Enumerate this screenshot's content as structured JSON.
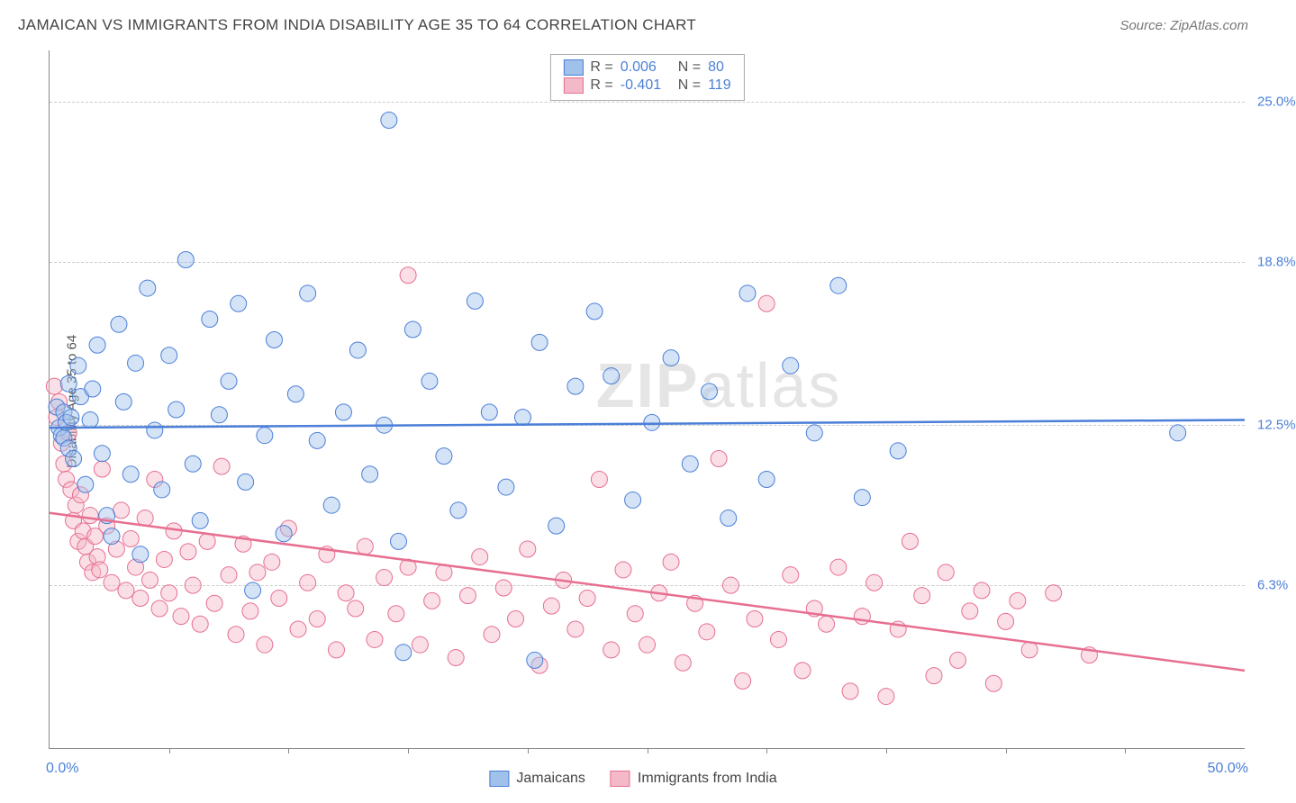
{
  "header": {
    "title": "JAMAICAN VS IMMIGRANTS FROM INDIA DISABILITY AGE 35 TO 64 CORRELATION CHART",
    "source": "Source: ZipAtlas.com"
  },
  "ylabel": "Disability Age 35 to 64",
  "watermark": {
    "bold": "ZIP",
    "rest": "atlas"
  },
  "chart": {
    "type": "scatter-with-trend",
    "xlim": [
      0,
      50
    ],
    "ylim": [
      0,
      27
    ],
    "x_axis_labels": {
      "left": "0.0%",
      "right": "50.0%",
      "color": "#4b7fd8"
    },
    "xtick_positions": [
      5,
      10,
      15,
      20,
      25,
      30,
      35,
      40,
      45
    ],
    "y_gridlines": [
      {
        "y": 6.3,
        "label": "6.3%",
        "color": "#4b7fd8"
      },
      {
        "y": 12.5,
        "label": "12.5%",
        "color": "#4b7fd8"
      },
      {
        "y": 18.8,
        "label": "18.8%",
        "color": "#4b7fd8"
      },
      {
        "y": 25.0,
        "label": "25.0%",
        "color": "#4b7fd8"
      }
    ],
    "grid_color": "#cccccc",
    "background_color": "#ffffff",
    "marker_radius": 9,
    "marker_opacity": 0.45,
    "line_width": 2.5,
    "series": [
      {
        "name": "Jamaicans",
        "R": "0.006",
        "N": "80",
        "fill": "#9fc1ea",
        "stroke": "#4b7fd8",
        "line_color": "#4b7fd8",
        "trend": {
          "y_at_x0": 12.4,
          "y_at_x50": 12.7
        },
        "points": [
          [
            0.3,
            13.2
          ],
          [
            0.4,
            12.4
          ],
          [
            0.5,
            12.1
          ],
          [
            0.6,
            13.0
          ],
          [
            0.6,
            12.0
          ],
          [
            0.7,
            12.6
          ],
          [
            0.8,
            11.6
          ],
          [
            0.8,
            14.1
          ],
          [
            0.9,
            12.8
          ],
          [
            1.0,
            11.2
          ],
          [
            1.2,
            14.8
          ],
          [
            1.3,
            13.6
          ],
          [
            1.5,
            10.2
          ],
          [
            1.7,
            12.7
          ],
          [
            1.8,
            13.9
          ],
          [
            2.0,
            15.6
          ],
          [
            2.2,
            11.4
          ],
          [
            2.4,
            9.0
          ],
          [
            2.6,
            8.2
          ],
          [
            2.9,
            16.4
          ],
          [
            3.1,
            13.4
          ],
          [
            3.4,
            10.6
          ],
          [
            3.6,
            14.9
          ],
          [
            3.8,
            7.5
          ],
          [
            4.1,
            17.8
          ],
          [
            4.4,
            12.3
          ],
          [
            4.7,
            10.0
          ],
          [
            5.0,
            15.2
          ],
          [
            5.3,
            13.1
          ],
          [
            5.7,
            18.9
          ],
          [
            6.0,
            11.0
          ],
          [
            6.3,
            8.8
          ],
          [
            6.7,
            16.6
          ],
          [
            7.1,
            12.9
          ],
          [
            7.5,
            14.2
          ],
          [
            7.9,
            17.2
          ],
          [
            8.2,
            10.3
          ],
          [
            8.5,
            6.1
          ],
          [
            9.0,
            12.1
          ],
          [
            9.4,
            15.8
          ],
          [
            9.8,
            8.3
          ],
          [
            10.3,
            13.7
          ],
          [
            10.8,
            17.6
          ],
          [
            11.2,
            11.9
          ],
          [
            11.8,
            9.4
          ],
          [
            12.3,
            13.0
          ],
          [
            12.9,
            15.4
          ],
          [
            13.4,
            10.6
          ],
          [
            14.0,
            12.5
          ],
          [
            14.2,
            24.3
          ],
          [
            14.6,
            8.0
          ],
          [
            15.2,
            16.2
          ],
          [
            15.9,
            14.2
          ],
          [
            16.5,
            11.3
          ],
          [
            17.1,
            9.2
          ],
          [
            17.8,
            17.3
          ],
          [
            18.4,
            13.0
          ],
          [
            19.1,
            10.1
          ],
          [
            19.8,
            12.8
          ],
          [
            20.5,
            15.7
          ],
          [
            21.2,
            8.6
          ],
          [
            22.0,
            14.0
          ],
          [
            22.8,
            16.9
          ],
          [
            23.5,
            14.4
          ],
          [
            24.4,
            9.6
          ],
          [
            25.2,
            12.6
          ],
          [
            26.0,
            15.1
          ],
          [
            26.8,
            11.0
          ],
          [
            27.6,
            13.8
          ],
          [
            28.4,
            8.9
          ],
          [
            29.2,
            17.6
          ],
          [
            30.0,
            10.4
          ],
          [
            31.0,
            14.8
          ],
          [
            32.0,
            12.2
          ],
          [
            33.0,
            17.9
          ],
          [
            34.0,
            9.7
          ],
          [
            35.5,
            11.5
          ],
          [
            20.3,
            3.4
          ],
          [
            14.8,
            3.7
          ],
          [
            47.2,
            12.2
          ]
        ]
      },
      {
        "name": "Immigrants from India",
        "R": "-0.401",
        "N": "119",
        "fill": "#f4b9c8",
        "stroke": "#e76f91",
        "line_color": "#e76f91",
        "trend": {
          "y_at_x0": 9.1,
          "y_at_x50": 3.0
        },
        "points": [
          [
            0.2,
            14.0
          ],
          [
            0.3,
            12.8
          ],
          [
            0.4,
            13.4
          ],
          [
            0.5,
            11.8
          ],
          [
            0.6,
            11.0
          ],
          [
            0.7,
            10.4
          ],
          [
            0.8,
            12.2
          ],
          [
            0.9,
            10.0
          ],
          [
            1.0,
            8.8
          ],
          [
            1.1,
            9.4
          ],
          [
            1.2,
            8.0
          ],
          [
            1.3,
            9.8
          ],
          [
            1.4,
            8.4
          ],
          [
            1.5,
            7.8
          ],
          [
            1.6,
            7.2
          ],
          [
            1.7,
            9.0
          ],
          [
            1.8,
            6.8
          ],
          [
            1.9,
            8.2
          ],
          [
            2.0,
            7.4
          ],
          [
            2.1,
            6.9
          ],
          [
            2.2,
            10.8
          ],
          [
            2.4,
            8.6
          ],
          [
            2.6,
            6.4
          ],
          [
            2.8,
            7.7
          ],
          [
            3.0,
            9.2
          ],
          [
            3.2,
            6.1
          ],
          [
            3.4,
            8.1
          ],
          [
            3.6,
            7.0
          ],
          [
            3.8,
            5.8
          ],
          [
            4.0,
            8.9
          ],
          [
            4.2,
            6.5
          ],
          [
            4.4,
            10.4
          ],
          [
            4.6,
            5.4
          ],
          [
            4.8,
            7.3
          ],
          [
            5.0,
            6.0
          ],
          [
            5.2,
            8.4
          ],
          [
            5.5,
            5.1
          ],
          [
            5.8,
            7.6
          ],
          [
            6.0,
            6.3
          ],
          [
            6.3,
            4.8
          ],
          [
            6.6,
            8.0
          ],
          [
            6.9,
            5.6
          ],
          [
            7.2,
            10.9
          ],
          [
            7.5,
            6.7
          ],
          [
            7.8,
            4.4
          ],
          [
            8.1,
            7.9
          ],
          [
            8.4,
            5.3
          ],
          [
            8.7,
            6.8
          ],
          [
            9.0,
            4.0
          ],
          [
            9.3,
            7.2
          ],
          [
            9.6,
            5.8
          ],
          [
            10.0,
            8.5
          ],
          [
            10.4,
            4.6
          ],
          [
            10.8,
            6.4
          ],
          [
            11.2,
            5.0
          ],
          [
            11.6,
            7.5
          ],
          [
            12.0,
            3.8
          ],
          [
            12.4,
            6.0
          ],
          [
            12.8,
            5.4
          ],
          [
            13.2,
            7.8
          ],
          [
            13.6,
            4.2
          ],
          [
            14.0,
            6.6
          ],
          [
            14.5,
            5.2
          ],
          [
            15.0,
            7.0
          ],
          [
            15.5,
            4.0
          ],
          [
            15.0,
            18.3
          ],
          [
            16.0,
            5.7
          ],
          [
            16.5,
            6.8
          ],
          [
            17.0,
            3.5
          ],
          [
            17.5,
            5.9
          ],
          [
            18.0,
            7.4
          ],
          [
            18.5,
            4.4
          ],
          [
            19.0,
            6.2
          ],
          [
            19.5,
            5.0
          ],
          [
            20.0,
            7.7
          ],
          [
            20.5,
            3.2
          ],
          [
            21.0,
            5.5
          ],
          [
            21.5,
            6.5
          ],
          [
            22.0,
            4.6
          ],
          [
            22.5,
            5.8
          ],
          [
            23.0,
            10.4
          ],
          [
            23.5,
            3.8
          ],
          [
            24.0,
            6.9
          ],
          [
            24.5,
            5.2
          ],
          [
            25.0,
            4.0
          ],
          [
            25.5,
            6.0
          ],
          [
            26.0,
            7.2
          ],
          [
            26.5,
            3.3
          ],
          [
            27.0,
            5.6
          ],
          [
            27.5,
            4.5
          ],
          [
            28.0,
            11.2
          ],
          [
            28.5,
            6.3
          ],
          [
            29.0,
            2.6
          ],
          [
            29.5,
            5.0
          ],
          [
            30.0,
            17.2
          ],
          [
            30.5,
            4.2
          ],
          [
            31.0,
            6.7
          ],
          [
            31.5,
            3.0
          ],
          [
            32.0,
            5.4
          ],
          [
            32.5,
            4.8
          ],
          [
            33.0,
            7.0
          ],
          [
            33.5,
            2.2
          ],
          [
            34.0,
            5.1
          ],
          [
            34.5,
            6.4
          ],
          [
            35.0,
            2.0
          ],
          [
            35.5,
            4.6
          ],
          [
            36.0,
            8.0
          ],
          [
            36.5,
            5.9
          ],
          [
            37.0,
            2.8
          ],
          [
            37.5,
            6.8
          ],
          [
            38.0,
            3.4
          ],
          [
            38.5,
            5.3
          ],
          [
            39.0,
            6.1
          ],
          [
            39.5,
            2.5
          ],
          [
            40.0,
            4.9
          ],
          [
            40.5,
            5.7
          ],
          [
            41.0,
            3.8
          ],
          [
            42.0,
            6.0
          ],
          [
            43.5,
            3.6
          ]
        ]
      }
    ]
  },
  "legend_top": {
    "R_label": "R =",
    "N_label": "N =",
    "text_color": "#555555",
    "value_color": "#4b7fd8"
  },
  "legend_bottom": {
    "items": [
      "Jamaicans",
      "Immigrants from India"
    ]
  }
}
